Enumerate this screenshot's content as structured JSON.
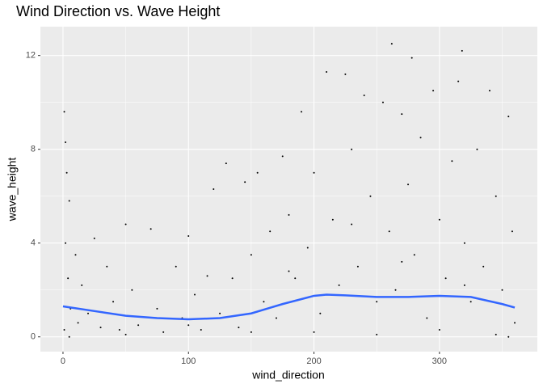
{
  "chart_data": {
    "type": "scatter",
    "title": "Wind Direction vs. Wave Height",
    "x_label": "wind_direction",
    "y_label": "wave_height",
    "xlim": [
      -18,
      378
    ],
    "ylim": [
      -0.63,
      13.23
    ],
    "xticks": [
      0,
      100,
      200,
      300
    ],
    "yticks": [
      0,
      4,
      8,
      12
    ],
    "x_minor_ticks": [
      50,
      150,
      250,
      350
    ],
    "y_minor_ticks": [
      2,
      6,
      10
    ],
    "grid": true,
    "points": {
      "color": "#000000",
      "x": [
        1,
        2,
        3,
        5,
        2,
        4,
        1,
        6,
        10,
        12,
        15,
        20,
        25,
        30,
        35,
        40,
        45,
        50,
        55,
        60,
        70,
        75,
        80,
        90,
        95,
        100,
        105,
        110,
        115,
        120,
        125,
        130,
        135,
        140,
        145,
        150,
        155,
        160,
        165,
        170,
        175,
        180,
        185,
        190,
        195,
        200,
        205,
        210,
        215,
        220,
        225,
        230,
        235,
        240,
        245,
        250,
        255,
        260,
        262,
        265,
        270,
        275,
        278,
        280,
        285,
        290,
        295,
        300,
        305,
        310,
        315,
        318,
        320,
        325,
        330,
        335,
        340,
        345,
        350,
        355,
        358,
        360,
        200,
        250,
        300,
        150,
        50,
        345,
        100,
        180,
        230,
        270,
        320,
        5,
        355
      ],
      "y": [
        9.6,
        8.3,
        7.0,
        5.8,
        4.0,
        2.5,
        0.3,
        1.2,
        3.5,
        0.6,
        2.2,
        1.0,
        4.2,
        0.4,
        3.0,
        1.5,
        0.3,
        4.8,
        2.0,
        0.5,
        4.6,
        1.2,
        0.2,
        3.0,
        0.8,
        4.3,
        1.8,
        0.3,
        2.6,
        6.3,
        1.0,
        7.4,
        2.5,
        0.4,
        6.6,
        3.5,
        7.0,
        1.5,
        4.5,
        0.8,
        7.7,
        5.2,
        2.5,
        9.6,
        3.8,
        7.0,
        1.0,
        11.3,
        5.0,
        2.2,
        11.2,
        8.0,
        3.0,
        10.3,
        6.0,
        1.5,
        10.0,
        4.5,
        12.5,
        2.0,
        9.5,
        6.5,
        11.9,
        3.5,
        8.5,
        0.8,
        10.5,
        5.0,
        2.5,
        7.5,
        10.9,
        12.2,
        4.0,
        1.5,
        8.0,
        3.0,
        10.5,
        6.0,
        2.0,
        9.4,
        4.5,
        0.6,
        0.2,
        0.1,
        0.3,
        0.2,
        0.1,
        0.1,
        0.5,
        2.8,
        4.8,
        3.2,
        2.2,
        0.0,
        0.0
      ]
    },
    "smooth": {
      "color": "#3366ff",
      "x": [
        0,
        25,
        50,
        75,
        100,
        125,
        150,
        175,
        200,
        210,
        225,
        250,
        275,
        300,
        325,
        350,
        360
      ],
      "y": [
        1.3,
        1.1,
        0.9,
        0.8,
        0.75,
        0.8,
        1.0,
        1.4,
        1.75,
        1.8,
        1.77,
        1.7,
        1.7,
        1.75,
        1.7,
        1.4,
        1.25
      ]
    }
  }
}
